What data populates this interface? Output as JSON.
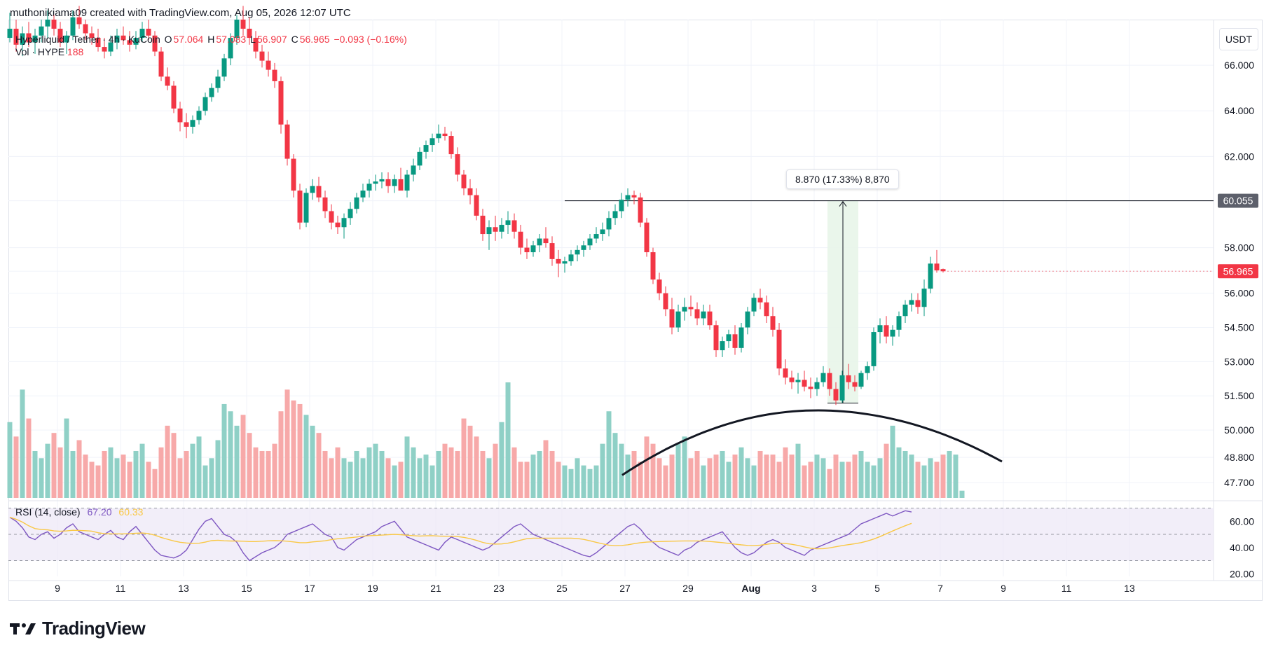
{
  "header": {
    "text": "muthonikiama09 created with TradingView.com, Aug 05, 2026 12:07 UTC"
  },
  "legend": {
    "symbol": "Hyperliquid / Tether · 4h · KuCoin",
    "o_label": "O",
    "o_value": "57.064",
    "h_label": "H",
    "h_value": "57.083",
    "l_label": "L",
    "l_value": "56.907",
    "c_label": "C",
    "c_value": "56.965",
    "change": "−0.093 (−0.16%)",
    "vol_label": "Vol · HYPE",
    "vol_value": "188"
  },
  "currency_button": "USDT",
  "measure_tooltip": "8.870 (17.33%) 8,870",
  "rsi_legend": {
    "label": "RSI (14, close)",
    "rsi_value": "67.20",
    "ma_value": "60.33"
  },
  "brand": "TradingView",
  "colors": {
    "up": "#089981",
    "down": "#f23645",
    "vol_up": "#8fd0c6",
    "vol_down": "#f7a9a9",
    "rsi_line": "#7e57c2",
    "rsi_ma": "#f9c846",
    "rsi_band": "#ede7f6",
    "measure_fill": "#e8f5e9"
  },
  "chart_data": {
    "type": "candlestick",
    "timeframe": "4h",
    "y_axis_ticks": [
      "66.000",
      "64.000",
      "62.000",
      "60.055",
      "58.000",
      "56.965",
      "56.000",
      "54.500",
      "53.000",
      "51.500",
      "50.000",
      "48.800",
      "47.700"
    ],
    "price_labels": {
      "level_line": "60.055",
      "last_price": "56.965"
    },
    "x_axis_ticks": [
      "9",
      "11",
      "13",
      "15",
      "17",
      "19",
      "21",
      "23",
      "25",
      "27",
      "29",
      "Aug",
      "3",
      "5",
      "7",
      "9",
      "11",
      "13"
    ],
    "rsi_ticks": [
      "60.00",
      "40.00",
      "20.00"
    ],
    "ylim": [
      46.9,
      68.0
    ],
    "rsi_ylim": [
      18,
      74
    ],
    "resistance_level": 60.055,
    "measure": {
      "from": 51.18,
      "to": 60.055,
      "pct": 17.33
    },
    "candles": [
      [
        67.2,
        68.3,
        67.0,
        67.6
      ],
      [
        67.6,
        68.0,
        66.6,
        66.9
      ],
      [
        66.9,
        67.7,
        66.4,
        67.4
      ],
      [
        67.4,
        67.9,
        66.8,
        67.0
      ],
      [
        67.0,
        67.6,
        66.5,
        67.3
      ],
      [
        67.3,
        68.0,
        67.0,
        67.7
      ],
      [
        67.7,
        68.4,
        67.2,
        68.0
      ],
      [
        68.0,
        68.2,
        67.3,
        67.6
      ],
      [
        67.6,
        67.9,
        66.8,
        67.0
      ],
      [
        67.0,
        67.5,
        66.5,
        67.3
      ],
      [
        67.3,
        68.4,
        67.1,
        68.1
      ],
      [
        68.1,
        68.6,
        67.6,
        67.8
      ],
      [
        67.8,
        68.0,
        67.1,
        67.4
      ],
      [
        67.4,
        67.7,
        66.9,
        67.2
      ],
      [
        67.2,
        67.6,
        66.6,
        66.8
      ],
      [
        66.8,
        67.2,
        66.3,
        66.6
      ],
      [
        66.6,
        67.3,
        66.4,
        67.0
      ],
      [
        67.0,
        67.6,
        66.7,
        67.3
      ],
      [
        67.3,
        67.7,
        66.9,
        67.1
      ],
      [
        67.1,
        67.5,
        66.6,
        66.9
      ],
      [
        66.9,
        67.5,
        66.7,
        67.2
      ],
      [
        67.2,
        67.9,
        67.0,
        67.6
      ],
      [
        67.6,
        68.0,
        67.1,
        67.3
      ],
      [
        67.3,
        67.5,
        66.4,
        66.6
      ],
      [
        66.6,
        66.8,
        65.3,
        65.5
      ],
      [
        65.5,
        65.9,
        64.9,
        65.1
      ],
      [
        65.1,
        65.3,
        63.9,
        64.1
      ],
      [
        64.1,
        64.4,
        63.1,
        63.5
      ],
      [
        63.5,
        63.9,
        62.8,
        63.3
      ],
      [
        63.3,
        63.8,
        63.0,
        63.6
      ],
      [
        63.6,
        64.2,
        63.4,
        64.0
      ],
      [
        64.0,
        64.8,
        63.8,
        64.6
      ],
      [
        64.6,
        65.2,
        64.4,
        65.0
      ],
      [
        65.0,
        65.8,
        64.8,
        65.5
      ],
      [
        65.5,
        66.5,
        65.3,
        66.3
      ],
      [
        66.3,
        67.4,
        66.0,
        67.2
      ],
      [
        67.2,
        68.2,
        66.9,
        68.0
      ],
      [
        68.0,
        68.6,
        67.3,
        67.6
      ],
      [
        67.6,
        68.1,
        66.9,
        67.2
      ],
      [
        67.2,
        67.5,
        66.3,
        66.6
      ],
      [
        66.6,
        66.9,
        65.9,
        66.2
      ],
      [
        66.2,
        66.6,
        65.5,
        65.8
      ],
      [
        65.8,
        66.1,
        65.0,
        65.3
      ],
      [
        65.3,
        65.5,
        63.0,
        63.4
      ],
      [
        63.4,
        63.6,
        61.6,
        61.9
      ],
      [
        61.9,
        62.1,
        60.2,
        60.5
      ],
      [
        60.5,
        60.8,
        58.8,
        59.1
      ],
      [
        59.1,
        60.6,
        58.9,
        60.4
      ],
      [
        60.4,
        61.0,
        60.1,
        60.7
      ],
      [
        60.7,
        61.1,
        60.0,
        60.2
      ],
      [
        60.2,
        60.5,
        59.3,
        59.6
      ],
      [
        59.6,
        59.9,
        58.8,
        59.1
      ],
      [
        59.1,
        59.4,
        58.6,
        58.9
      ],
      [
        58.9,
        59.5,
        58.4,
        59.3
      ],
      [
        59.3,
        60.0,
        59.0,
        59.7
      ],
      [
        59.7,
        60.4,
        59.5,
        60.2
      ],
      [
        60.2,
        60.8,
        60.0,
        60.5
      ],
      [
        60.5,
        61.0,
        60.2,
        60.8
      ],
      [
        60.8,
        61.2,
        60.5,
        60.9
      ],
      [
        60.9,
        61.3,
        60.6,
        61.0
      ],
      [
        61.0,
        61.3,
        60.4,
        60.7
      ],
      [
        60.7,
        61.2,
        60.4,
        61.0
      ],
      [
        61.0,
        61.5,
        60.7,
        60.5
      ],
      [
        60.5,
        61.4,
        60.2,
        61.2
      ],
      [
        61.2,
        61.9,
        60.9,
        61.6
      ],
      [
        61.6,
        62.4,
        61.4,
        62.2
      ],
      [
        62.2,
        62.7,
        61.9,
        62.5
      ],
      [
        62.5,
        63.0,
        62.2,
        62.8
      ],
      [
        62.8,
        63.4,
        62.6,
        63.0
      ],
      [
        63.0,
        63.3,
        62.7,
        62.9
      ],
      [
        62.9,
        63.1,
        61.9,
        62.1
      ],
      [
        62.1,
        62.4,
        60.9,
        61.2
      ],
      [
        61.2,
        61.4,
        60.3,
        60.6
      ],
      [
        60.6,
        61.0,
        59.9,
        60.3
      ],
      [
        60.3,
        60.6,
        59.2,
        59.4
      ],
      [
        59.4,
        59.7,
        58.3,
        58.6
      ],
      [
        58.6,
        59.2,
        57.9,
        58.9
      ],
      [
        58.9,
        59.4,
        58.3,
        58.7
      ],
      [
        58.7,
        59.3,
        58.4,
        59.0
      ],
      [
        59.0,
        59.6,
        58.6,
        59.2
      ],
      [
        59.2,
        59.5,
        58.4,
        58.7
      ],
      [
        58.7,
        59.0,
        57.7,
        58.0
      ],
      [
        58.0,
        58.4,
        57.5,
        57.8
      ],
      [
        57.8,
        58.3,
        57.6,
        58.1
      ],
      [
        58.1,
        58.6,
        57.8,
        58.4
      ],
      [
        58.4,
        58.9,
        58.0,
        58.2
      ],
      [
        58.2,
        58.5,
        57.2,
        57.5
      ],
      [
        57.5,
        57.9,
        56.7,
        57.3
      ],
      [
        57.3,
        57.6,
        56.9,
        57.4
      ],
      [
        57.4,
        57.9,
        57.2,
        57.7
      ],
      [
        57.7,
        58.1,
        57.4,
        57.9
      ],
      [
        57.9,
        58.3,
        57.6,
        58.1
      ],
      [
        58.1,
        58.6,
        57.9,
        58.4
      ],
      [
        58.4,
        58.9,
        58.2,
        58.6
      ],
      [
        58.6,
        59.1,
        58.3,
        58.8
      ],
      [
        58.8,
        59.6,
        58.5,
        59.3
      ],
      [
        59.3,
        59.9,
        59.0,
        59.6
      ],
      [
        59.6,
        60.4,
        59.3,
        60.1
      ],
      [
        60.1,
        60.6,
        59.8,
        60.3
      ],
      [
        60.3,
        60.5,
        59.9,
        60.2
      ],
      [
        60.2,
        60.4,
        58.9,
        59.1
      ],
      [
        59.1,
        59.3,
        57.6,
        57.8
      ],
      [
        57.8,
        58.0,
        56.4,
        56.6
      ],
      [
        56.6,
        56.9,
        55.7,
        56.0
      ],
      [
        56.0,
        56.3,
        55.0,
        55.3
      ],
      [
        55.3,
        55.8,
        54.2,
        54.5
      ],
      [
        54.5,
        55.5,
        54.3,
        55.2
      ],
      [
        55.2,
        55.8,
        54.8,
        55.4
      ],
      [
        55.4,
        55.9,
        55.0,
        55.3
      ],
      [
        55.3,
        55.6,
        54.6,
        54.9
      ],
      [
        54.9,
        55.5,
        54.6,
        55.2
      ],
      [
        55.2,
        55.5,
        54.4,
        54.6
      ],
      [
        54.6,
        54.8,
        53.2,
        53.5
      ],
      [
        53.5,
        54.1,
        53.2,
        53.9
      ],
      [
        53.9,
        54.4,
        53.6,
        54.2
      ],
      [
        54.2,
        54.6,
        53.3,
        53.6
      ],
      [
        53.6,
        54.7,
        53.4,
        54.5
      ],
      [
        54.5,
        55.4,
        54.2,
        55.2
      ],
      [
        55.2,
        56.0,
        55.0,
        55.8
      ],
      [
        55.8,
        56.2,
        55.3,
        55.6
      ],
      [
        55.6,
        55.9,
        54.7,
        55.0
      ],
      [
        55.0,
        55.4,
        54.1,
        54.4
      ],
      [
        54.4,
        54.7,
        52.4,
        52.7
      ],
      [
        52.7,
        53.1,
        52.0,
        52.3
      ],
      [
        52.3,
        52.6,
        51.8,
        52.1
      ],
      [
        52.1,
        52.5,
        51.6,
        52.2
      ],
      [
        52.2,
        52.6,
        51.7,
        51.9
      ],
      [
        51.9,
        52.3,
        51.4,
        51.8
      ],
      [
        51.8,
        52.3,
        51.5,
        52.1
      ],
      [
        52.1,
        52.8,
        51.9,
        52.5
      ],
      [
        52.5,
        52.7,
        51.5,
        51.8
      ],
      [
        51.8,
        52.1,
        51.1,
        51.3
      ],
      [
        51.3,
        52.6,
        51.2,
        52.4
      ],
      [
        52.4,
        52.9,
        51.8,
        52.1
      ],
      [
        52.1,
        52.4,
        51.7,
        51.9
      ],
      [
        51.9,
        52.6,
        51.8,
        52.5
      ],
      [
        52.5,
        53.0,
        52.2,
        52.8
      ],
      [
        52.8,
        54.5,
        52.6,
        54.3
      ],
      [
        54.3,
        54.9,
        53.8,
        54.6
      ],
      [
        54.6,
        55.0,
        53.8,
        54.1
      ],
      [
        54.1,
        54.6,
        53.7,
        54.4
      ],
      [
        54.4,
        55.2,
        54.1,
        55.0
      ],
      [
        55.0,
        55.7,
        54.7,
        55.5
      ],
      [
        55.5,
        56.0,
        55.2,
        55.7
      ],
      [
        55.7,
        56.0,
        55.1,
        55.4
      ],
      [
        55.4,
        56.6,
        55.0,
        56.2
      ],
      [
        56.2,
        57.6,
        56.0,
        57.3
      ],
      [
        57.3,
        57.9,
        56.9,
        57.0
      ],
      [
        57.06,
        57.08,
        56.91,
        56.965
      ]
    ],
    "volume": [
      42,
      34,
      60,
      44,
      26,
      22,
      30,
      36,
      28,
      44,
      26,
      32,
      24,
      20,
      18,
      26,
      28,
      22,
      24,
      20,
      26,
      30,
      20,
      16,
      28,
      40,
      36,
      22,
      26,
      30,
      34,
      18,
      22,
      32,
      52,
      48,
      40,
      46,
      36,
      28,
      26,
      26,
      30,
      48,
      60,
      54,
      52,
      46,
      40,
      36,
      26,
      22,
      28,
      22,
      20,
      26,
      22,
      28,
      30,
      26,
      22,
      18,
      20,
      34,
      28,
      22,
      24,
      18,
      26,
      30,
      28,
      26,
      44,
      40,
      34,
      26,
      22,
      30,
      42,
      64,
      28,
      20,
      20,
      24,
      26,
      32,
      26,
      20,
      18,
      16,
      22,
      18,
      16,
      18,
      30,
      48,
      36,
      30,
      24,
      26,
      20,
      34,
      30,
      22,
      18,
      24,
      30,
      34,
      22,
      26,
      18,
      22,
      24,
      26,
      20,
      24,
      28,
      22,
      18,
      26,
      24,
      24,
      20,
      28,
      24,
      30,
      18,
      20,
      24,
      22,
      16,
      24,
      20,
      20,
      24,
      26,
      20,
      18,
      22,
      30,
      40,
      28,
      26,
      24,
      20,
      18,
      22,
      20,
      24,
      26,
      24,
      4
    ],
    "rsi": [
      63,
      60,
      55,
      48,
      46,
      50,
      52,
      47,
      50,
      55,
      58,
      52,
      50,
      48,
      46,
      50,
      53,
      48,
      46,
      52,
      56,
      50,
      44,
      38,
      34,
      33,
      32,
      34,
      38,
      46,
      54,
      60,
      62,
      56,
      50,
      48,
      44,
      36,
      30,
      33,
      36,
      38,
      40,
      44,
      50,
      52,
      54,
      56,
      58,
      54,
      50,
      48,
      40,
      38,
      42,
      46,
      48,
      50,
      52,
      56,
      58,
      60,
      54,
      48,
      46,
      44,
      42,
      40,
      38,
      44,
      48,
      46,
      44,
      42,
      40,
      38,
      40,
      44,
      48,
      52,
      56,
      58,
      54,
      50,
      48,
      46,
      44,
      42,
      40,
      38,
      36,
      34,
      33,
      36,
      40,
      44,
      48,
      52,
      56,
      58,
      54,
      48,
      44,
      40,
      38,
      36,
      34,
      38,
      40,
      44,
      46,
      48,
      50,
      52,
      46,
      40,
      36,
      34,
      36,
      40,
      44,
      46,
      44,
      40,
      38,
      36,
      34,
      38,
      40,
      42,
      44,
      46,
      48,
      50,
      54,
      58,
      60,
      62,
      64,
      66,
      64,
      66,
      68,
      67
    ]
  }
}
